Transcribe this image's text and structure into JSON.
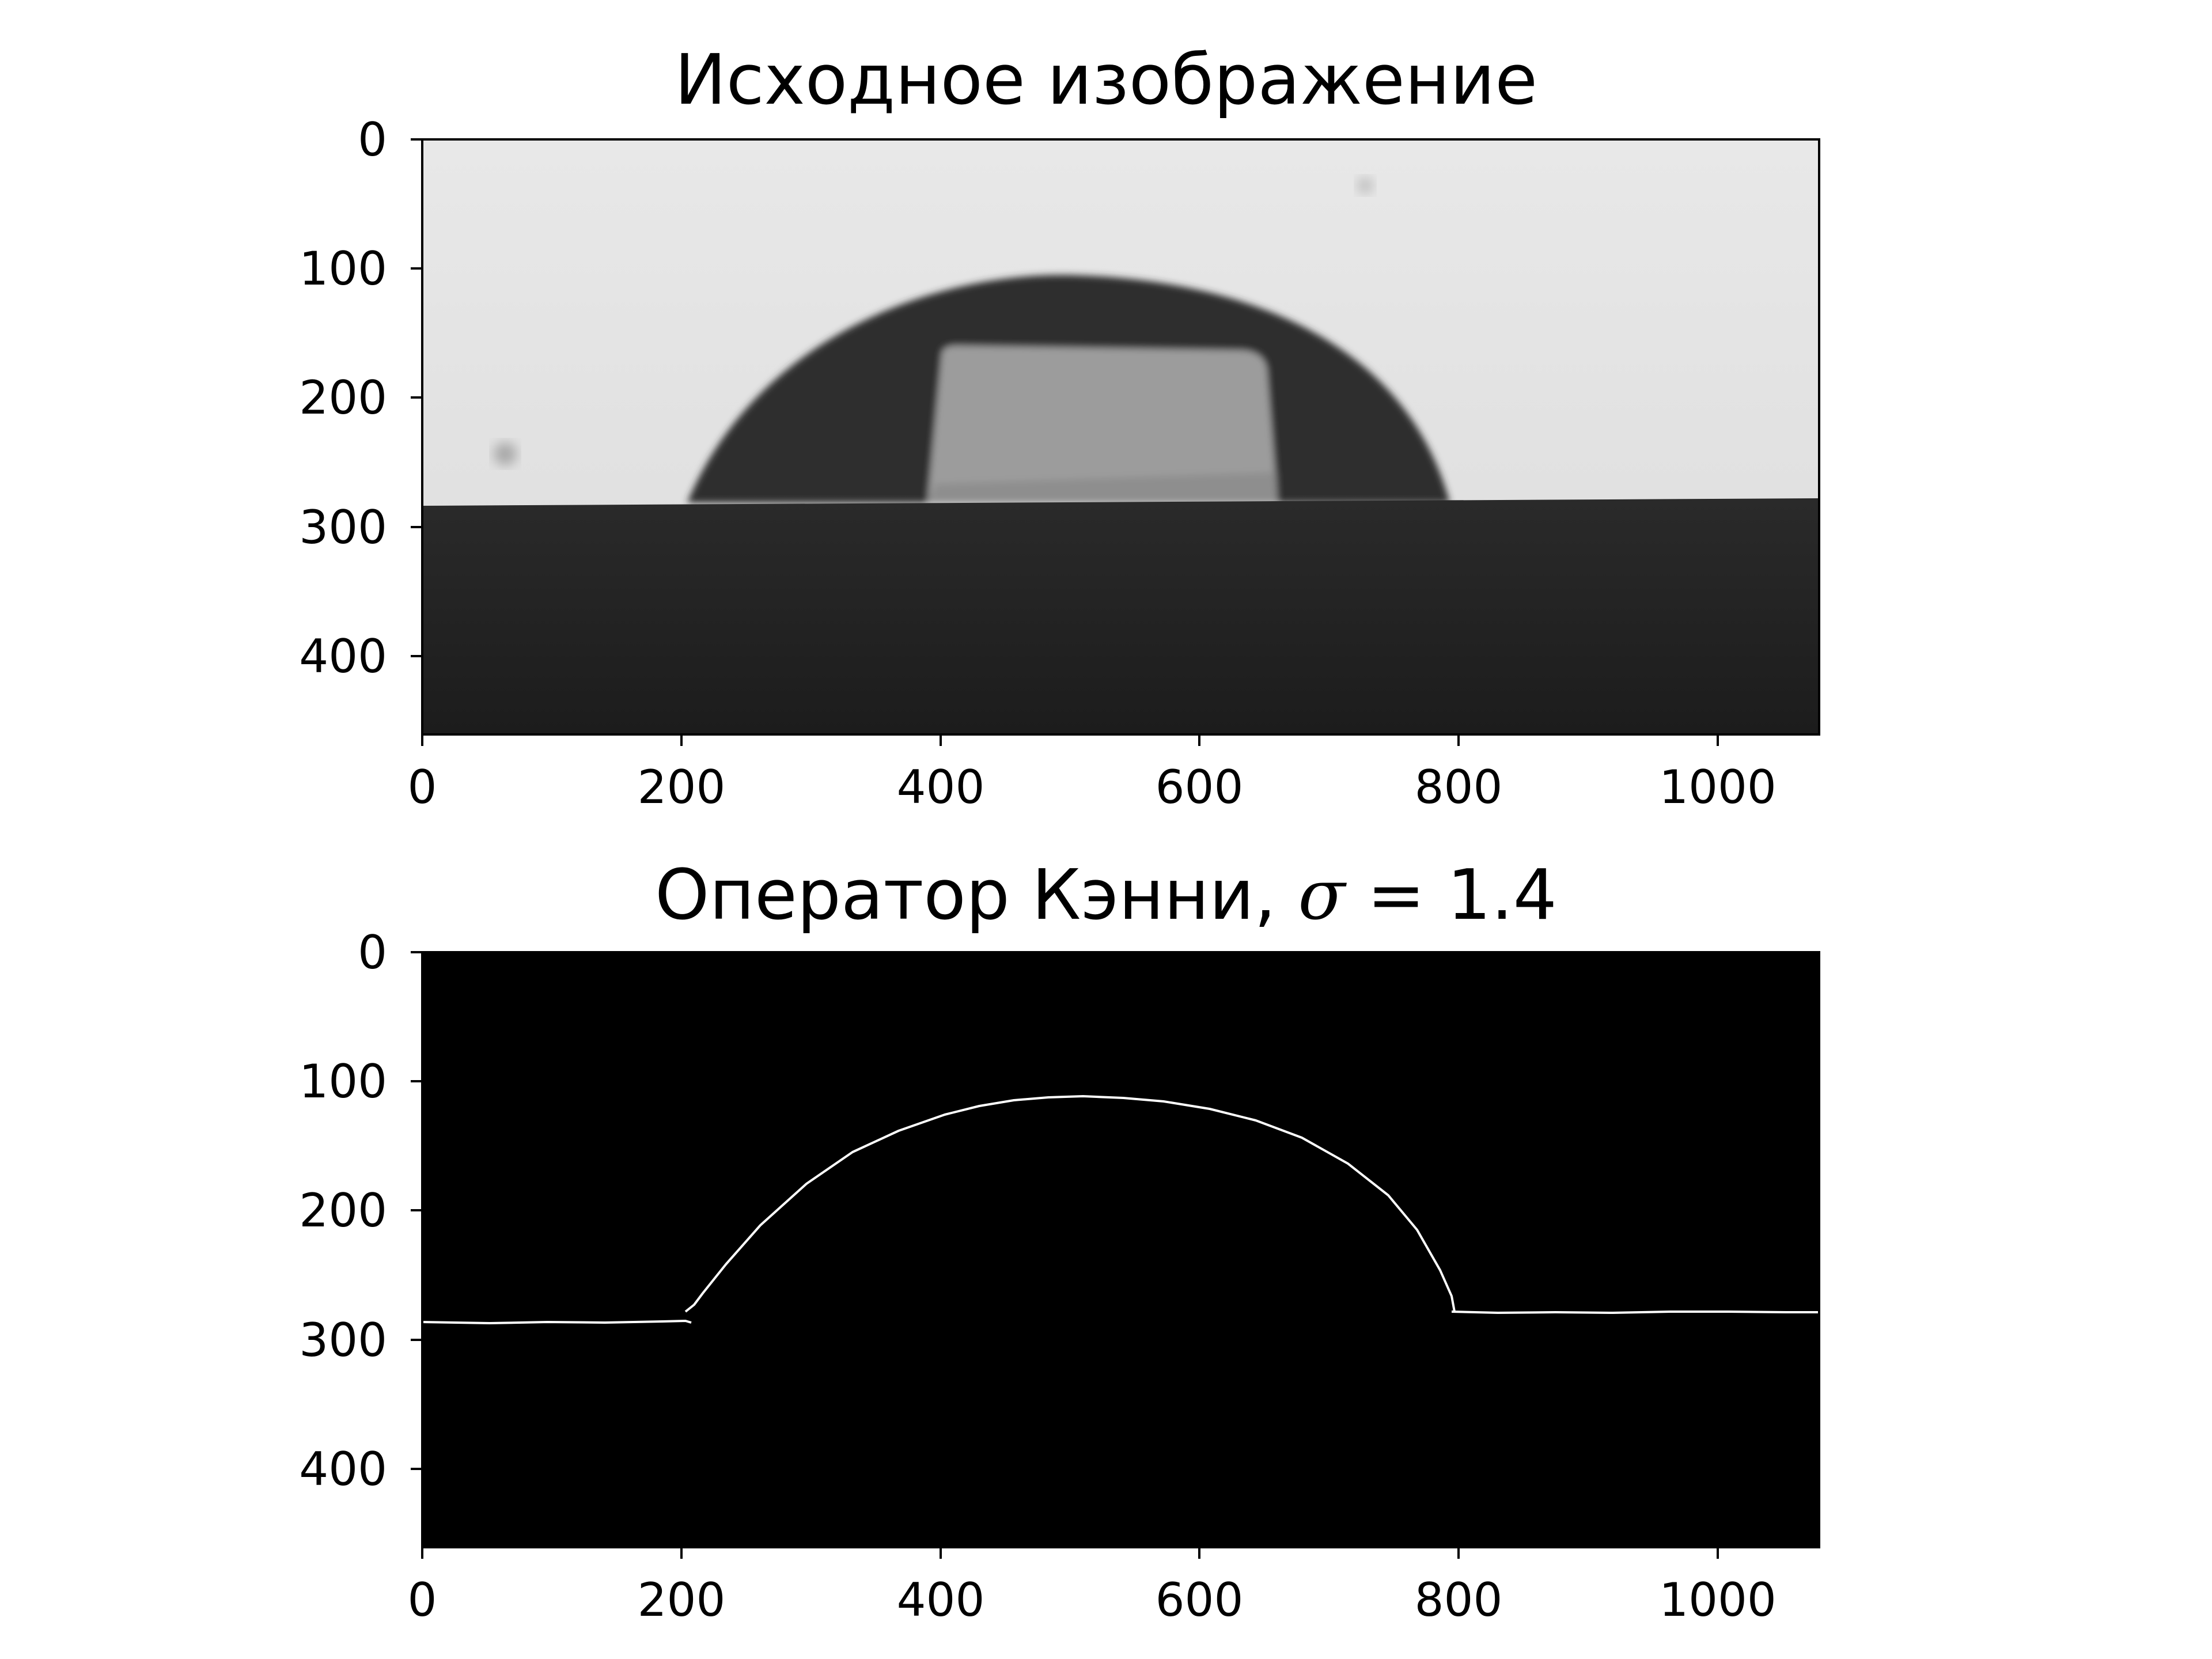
{
  "figure": {
    "panels": [
      {
        "title": "Исходное изображение",
        "image_kind": "grayscale photograph of a sessile drop resting on a dark substrate",
        "colors": {
          "background": "#e2e2e2",
          "drop": "#2e2e2e",
          "drop_window": "#9c9c9c",
          "substrate": "#242424"
        },
        "x_ticks": [
          "0",
          "200",
          "400",
          "600",
          "800",
          "1000"
        ],
        "y_ticks": [
          "0",
          "100",
          "200",
          "300",
          "400"
        ]
      },
      {
        "title_text": "Оператор Кэнни, ",
        "title_symbol": "σ",
        "title_eq": " = 1.4",
        "image_kind": "Canny edge map (white edges on black)",
        "colors": {
          "background": "#000000",
          "edge": "#ffffff"
        },
        "x_ticks": [
          "0",
          "200",
          "400",
          "600",
          "800",
          "1000"
        ],
        "y_ticks": [
          "0",
          "100",
          "200",
          "300",
          "400"
        ]
      }
    ]
  }
}
